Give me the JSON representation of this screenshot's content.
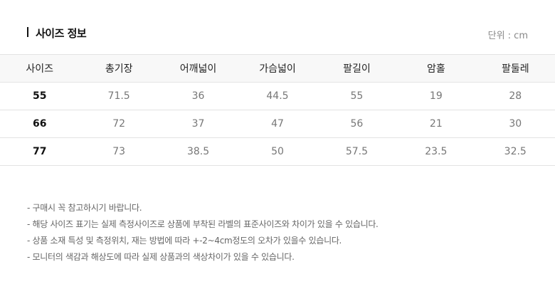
{
  "title": "사이즈 정보",
  "unit": "단위 : cm",
  "table": {
    "headers": [
      "사이즈",
      "총기장",
      "어깨넓이",
      "가슴넓이",
      "팔길이",
      "암홀",
      "팔둘레"
    ],
    "rows": [
      [
        "55",
        "71.5",
        "36",
        "44.5",
        "55",
        "19",
        "28"
      ],
      [
        "66",
        "72",
        "37",
        "47",
        "56",
        "21",
        "30"
      ],
      [
        "77",
        "73",
        "38.5",
        "50",
        "57.5",
        "23.5",
        "32.5"
      ]
    ]
  },
  "notes": [
    "- 구매시 꼭 참고하시기 바랍니다.",
    "- 해당 사이즈 표기는 실제 측정사이즈로 상품에 부착된 라벨의 표준사이즈와 차이가 있을 수 있습니다.",
    "- 상품 소재 특성 및 측정위치, 재는 방법에 따라 +-2~4cm정도의 오차가 있을수 있습니다.",
    "- 모니터의 색감과 해상도에 따라 실제 상품과의 색상차이가 있을 수 있습니다."
  ]
}
